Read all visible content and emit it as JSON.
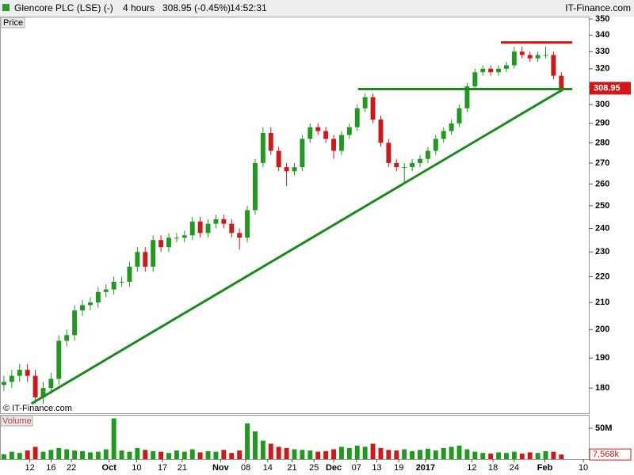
{
  "chart_data": {
    "type": "candlestick",
    "title": "Glencore PLC (LSE) (-)",
    "interval": "4 hours",
    "last_quote": "308.95 (-0.45%)",
    "time": "14:52:31",
    "source": "IT-Finance.com",
    "watermark": "© IT-Finance.com",
    "y_label": "Price",
    "log_scale": true,
    "grid": false,
    "up_color": "#1f9a1f",
    "down_color": "#d01818",
    "ylim": [
      172,
      351
    ],
    "yticks": [
      180,
      190,
      200,
      210,
      220,
      230,
      240,
      250,
      260,
      270,
      280,
      290,
      300,
      310,
      320,
      330,
      340,
      350
    ],
    "price_marker": 308.95,
    "xlim": [
      -0.5,
      74.5
    ],
    "xticks": [
      {
        "value": 3.3,
        "label": "12"
      },
      {
        "value": 6.0,
        "label": "16"
      },
      {
        "value": 8.6,
        "label": "22"
      },
      {
        "value": 13.4,
        "label": "Oct",
        "bold": true
      },
      {
        "value": 16.9,
        "label": "10"
      },
      {
        "value": 20.2,
        "label": "17"
      },
      {
        "value": 22.7,
        "label": "21"
      },
      {
        "value": 27.6,
        "label": "Nov",
        "bold": true
      },
      {
        "value": 30.8,
        "label": "08"
      },
      {
        "value": 33.6,
        "label": "14"
      },
      {
        "value": 36.7,
        "label": "21"
      },
      {
        "value": 39.5,
        "label": "25"
      },
      {
        "value": 42.0,
        "label": "Dec",
        "bold": true
      },
      {
        "value": 44.9,
        "label": "07"
      },
      {
        "value": 47.5,
        "label": "13"
      },
      {
        "value": 50.3,
        "label": "19"
      },
      {
        "value": 53.7,
        "label": "2017",
        "bold": true
      },
      {
        "value": 59.6,
        "label": "12"
      },
      {
        "value": 62.3,
        "label": "18"
      },
      {
        "value": 65.0,
        "label": "24"
      },
      {
        "value": 68.9,
        "label": "Feb",
        "bold": true
      },
      {
        "value": 73.8,
        "label": "10"
      }
    ],
    "open": [
      181,
      182,
      184,
      186,
      184,
      177,
      180,
      183,
      196,
      198,
      207,
      209,
      210,
      214,
      215,
      218,
      218,
      224,
      230,
      224,
      235,
      232,
      236,
      236,
      237,
      243,
      238,
      242,
      244,
      242,
      238,
      236,
      248,
      270,
      285,
      276,
      268,
      266,
      268,
      282,
      288,
      286,
      282,
      276,
      284,
      288,
      298,
      304,
      292,
      280,
      270,
      268,
      268,
      270,
      272,
      276,
      282,
      286,
      290,
      298,
      310,
      318,
      320,
      318,
      320,
      322,
      330,
      328,
      326,
      328,
      328,
      316
    ],
    "high": [
      184,
      186,
      188,
      188,
      186,
      182,
      185,
      198,
      200,
      209,
      211,
      212,
      216,
      217,
      220,
      220,
      226,
      232,
      232,
      237,
      237,
      238,
      238,
      239,
      245,
      245,
      244,
      246,
      246,
      244,
      240,
      250,
      272,
      288,
      288,
      278,
      270,
      270,
      284,
      290,
      290,
      288,
      284,
      286,
      290,
      300,
      306,
      306,
      294,
      282,
      272,
      270,
      272,
      274,
      278,
      284,
      288,
      292,
      300,
      312,
      320,
      322,
      322,
      322,
      324,
      333,
      333,
      330,
      330,
      333,
      330,
      318
    ],
    "low": [
      179,
      180,
      182,
      182,
      175,
      175,
      178,
      181,
      194,
      196,
      205,
      207,
      208,
      212,
      213,
      216,
      216,
      222,
      222,
      222,
      230,
      230,
      234,
      234,
      235,
      236,
      236,
      240,
      240,
      236,
      231,
      234,
      246,
      268,
      274,
      266,
      259,
      264,
      266,
      280,
      284,
      280,
      272,
      274,
      282,
      286,
      296,
      290,
      278,
      268,
      266,
      260,
      266,
      268,
      270,
      274,
      280,
      284,
      288,
      296,
      308,
      316,
      316,
      316,
      318,
      320,
      326,
      324,
      324,
      326,
      314,
      307
    ],
    "close": [
      182,
      184,
      186,
      184,
      177,
      180,
      183,
      196,
      198,
      207,
      209,
      210,
      214,
      215,
      218,
      218,
      224,
      230,
      224,
      235,
      232,
      236,
      236,
      237,
      243,
      238,
      242,
      244,
      242,
      238,
      236,
      248,
      270,
      285,
      276,
      268,
      266,
      268,
      282,
      288,
      286,
      282,
      276,
      284,
      288,
      298,
      304,
      292,
      280,
      270,
      268,
      268,
      270,
      272,
      276,
      282,
      286,
      290,
      298,
      310,
      318,
      320,
      318,
      320,
      322,
      330,
      328,
      326,
      328,
      328,
      316,
      308.95
    ],
    "volume": {
      "label": "Volume",
      "ylim": [
        0,
        70500000
      ],
      "yticks": [
        {
          "value": 50000000,
          "label": "50M"
        }
      ],
      "marker": {
        "value": 7568000,
        "label": "7,568k"
      },
      "values": [
        8000000,
        12000000,
        10000000,
        14000000,
        20000000,
        12000000,
        15000000,
        18000000,
        16000000,
        14000000,
        13000000,
        11000000,
        12000000,
        16000000,
        66000000,
        14000000,
        12000000,
        18000000,
        15000000,
        13000000,
        12000000,
        10000000,
        14000000,
        12000000,
        16000000,
        11000000,
        13000000,
        12000000,
        15000000,
        10000000,
        14000000,
        58000000,
        45000000,
        30000000,
        25000000,
        20000000,
        18000000,
        16000000,
        15000000,
        14000000,
        12000000,
        13000000,
        16000000,
        20000000,
        18000000,
        22000000,
        20000000,
        25000000,
        18000000,
        15000000,
        14000000,
        16000000,
        13000000,
        15000000,
        17000000,
        14000000,
        18000000,
        20000000,
        22000000,
        16000000,
        12000000,
        10000000,
        9000000,
        11000000,
        10000000,
        12000000,
        9000000,
        11000000,
        10000000,
        13000000,
        12000000,
        7568000
      ]
    },
    "lines": [
      {
        "color": "#1a8a1a",
        "points": [
          [
            3.5,
            175
          ],
          [
            71.4,
            308.8
          ]
        ]
      },
      {
        "color": "#1a8a1a",
        "points": [
          [
            45.1,
            308.5
          ],
          [
            72.4,
            308.5
          ]
        ]
      },
      {
        "color": "#e01010",
        "points": [
          [
            63.3,
            335.5
          ],
          [
            72.4,
            335.5
          ]
        ]
      }
    ]
  }
}
